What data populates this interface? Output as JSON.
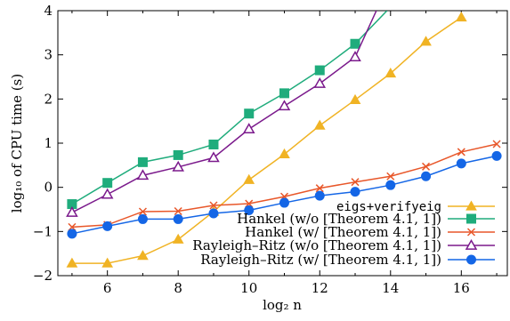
{
  "chart_data": {
    "type": "line",
    "xlabel": "log₂ n",
    "ylabel": "log₁₀ of CPU time (s)",
    "xlim": [
      4.6,
      17.3
    ],
    "ylim": [
      -2,
      4
    ],
    "x_ticks": [
      6,
      8,
      10,
      12,
      14,
      16
    ],
    "y_ticks": [
      -2,
      -1,
      0,
      1,
      2,
      3,
      4
    ],
    "x_tick_labels": [
      "6",
      "8",
      "10",
      "12",
      "14",
      "16"
    ],
    "y_tick_labels": [
      "−2",
      "−1",
      "0",
      "1",
      "2",
      "3",
      "4"
    ],
    "grid": false,
    "legend_position": "bottom-right",
    "series": [
      {
        "name": "eigs+verifyeig",
        "color": "#f0b324",
        "marker": "triangle-filled",
        "x": [
          5,
          6,
          7,
          8,
          9,
          10,
          11,
          12,
          13,
          14,
          15,
          16
        ],
        "y": [
          -1.72,
          -1.72,
          -1.55,
          -1.18,
          -0.55,
          0.17,
          0.75,
          1.4,
          1.98,
          2.58,
          3.3,
          3.85
        ]
      },
      {
        "name": "Hankel (w/o [Theorem 4.1, 1])",
        "color": "#1fac7c",
        "marker": "square-filled",
        "x": [
          5,
          6,
          7,
          8,
          9,
          10,
          11,
          12,
          13,
          13.9
        ],
        "y": [
          -0.38,
          0.1,
          0.57,
          0.73,
          0.97,
          1.67,
          2.13,
          2.65,
          3.25,
          4.0
        ]
      },
      {
        "name": "Hankel (w/ [Theorem 4.1, 1])",
        "color": "#e8572a",
        "marker": "cross",
        "x": [
          5,
          6,
          7,
          8,
          9,
          10,
          11,
          12,
          13,
          14,
          15,
          16,
          17
        ],
        "y": [
          -0.9,
          -0.85,
          -0.55,
          -0.54,
          -0.41,
          -0.37,
          -0.21,
          -0.02,
          0.12,
          0.25,
          0.47,
          0.8,
          0.98
        ]
      },
      {
        "name": "Rayleigh–Ritz (w/o [Theorem 4.1, 1])",
        "color": "#7b1a8c",
        "marker": "triangle-open",
        "x": [
          5,
          6,
          7,
          8,
          9,
          10,
          11,
          12,
          13,
          13.6
        ],
        "y": [
          -0.57,
          -0.16,
          0.27,
          0.46,
          0.67,
          1.32,
          1.84,
          2.35,
          2.95,
          4.0
        ]
      },
      {
        "name": "Rayleigh–Ritz (w/ [Theorem 4.1, 1])",
        "color": "#1466e6",
        "marker": "circle-filled",
        "x": [
          5,
          6,
          7,
          8,
          9,
          10,
          11,
          12,
          13,
          14,
          15,
          16,
          17
        ],
        "y": [
          -1.05,
          -0.88,
          -0.72,
          -0.72,
          -0.59,
          -0.52,
          -0.35,
          -0.19,
          -0.1,
          0.05,
          0.25,
          0.54,
          0.71
        ]
      }
    ]
  }
}
